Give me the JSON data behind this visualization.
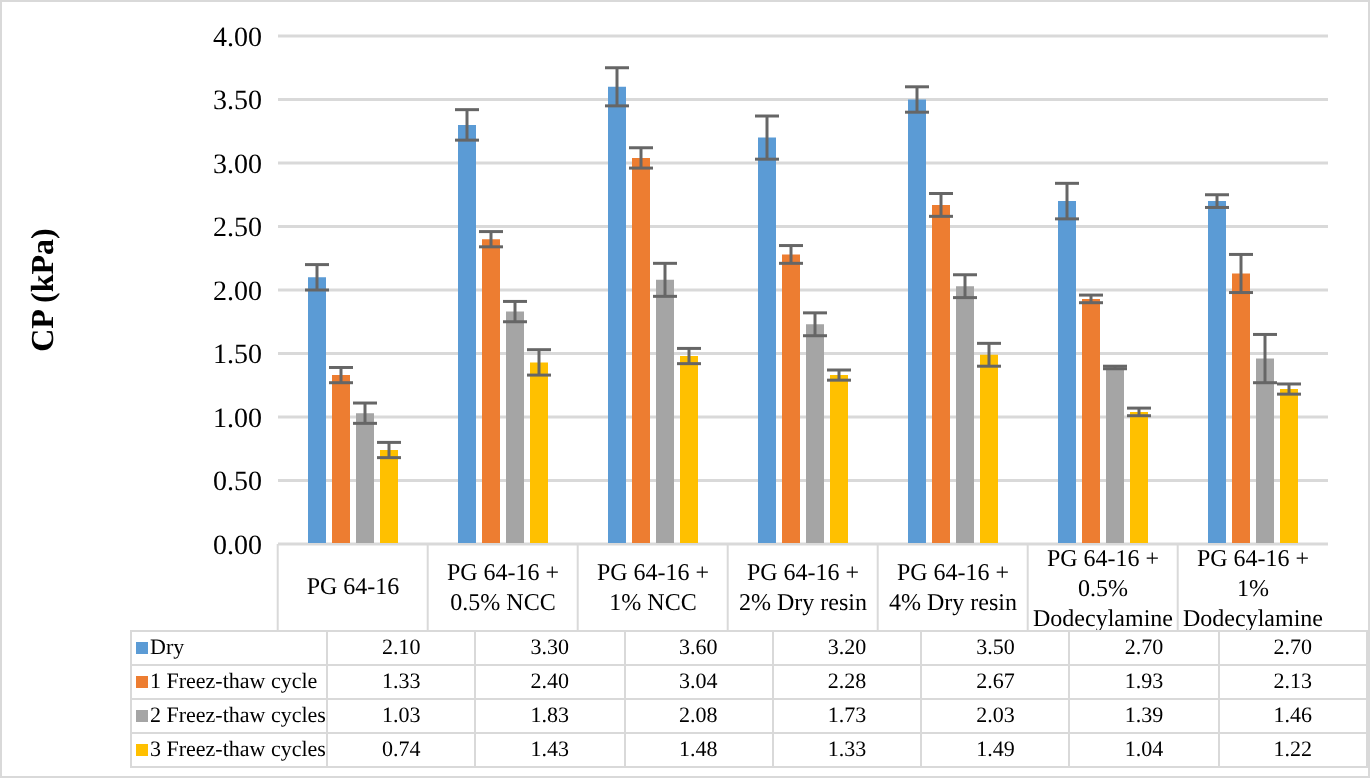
{
  "chart_data": {
    "type": "bar",
    "ylabel": "CP (kPa)",
    "categories": [
      "PG 64-16",
      "PG 64-16 + 0.5% NCC",
      "PG 64-16 + 1% NCC",
      "PG 64-16 + 2% Dry resin",
      "PG 64-16 + 4% Dry resin",
      "PG 64-16 + 0.5% Dodecylamine",
      "PG 64-16 + 1% Dodecylamine"
    ],
    "series": [
      {
        "name": "Dry",
        "color": "#5b9bd5",
        "values": [
          2.1,
          3.3,
          3.6,
          3.2,
          3.5,
          2.7,
          2.7
        ],
        "value_labels": [
          "2.10",
          "3.30",
          "3.60",
          "3.20",
          "3.50",
          "2.70",
          "2.70"
        ],
        "errors": [
          0.1,
          0.12,
          0.15,
          0.17,
          0.1,
          0.14,
          0.05
        ]
      },
      {
        "name": "1 Freez-thaw cycle",
        "color": "#ed7d31",
        "values": [
          1.33,
          2.4,
          3.04,
          2.28,
          2.67,
          1.93,
          2.13
        ],
        "value_labels": [
          "1.33",
          "2.40",
          "3.04",
          "2.28",
          "2.67",
          "1.93",
          "2.13"
        ],
        "errors": [
          0.06,
          0.06,
          0.08,
          0.07,
          0.09,
          0.03,
          0.15
        ]
      },
      {
        "name": "2 Freez-thaw cycles",
        "color": "#a5a5a5",
        "values": [
          1.03,
          1.83,
          2.08,
          1.73,
          2.03,
          1.39,
          1.46
        ],
        "value_labels": [
          "1.03",
          "1.83",
          "2.08",
          "1.73",
          "2.03",
          "1.39",
          "1.46"
        ],
        "errors": [
          0.08,
          0.08,
          0.13,
          0.09,
          0.09,
          0.01,
          0.19
        ]
      },
      {
        "name": "3 Freez-thaw cycles",
        "color": "#ffc000",
        "values": [
          0.74,
          1.43,
          1.48,
          1.33,
          1.49,
          1.04,
          1.22
        ],
        "value_labels": [
          "0.74",
          "1.43",
          "1.48",
          "1.33",
          "1.49",
          "1.04",
          "1.22"
        ],
        "errors": [
          0.06,
          0.1,
          0.06,
          0.04,
          0.09,
          0.03,
          0.04
        ]
      }
    ],
    "ylim": [
      0,
      4
    ],
    "yticks": [
      {
        "value": 0,
        "label": "0.00"
      },
      {
        "value": 0.5,
        "label": "0.50"
      },
      {
        "value": 1,
        "label": "1.00"
      },
      {
        "value": 1.5,
        "label": "1.50"
      },
      {
        "value": 2,
        "label": "2.00"
      },
      {
        "value": 2.5,
        "label": "2.50"
      },
      {
        "value": 3,
        "label": "3.00"
      },
      {
        "value": 3.5,
        "label": "3.50"
      },
      {
        "value": 4,
        "label": "4.00"
      }
    ],
    "grid": "y",
    "legend": "bottom"
  }
}
